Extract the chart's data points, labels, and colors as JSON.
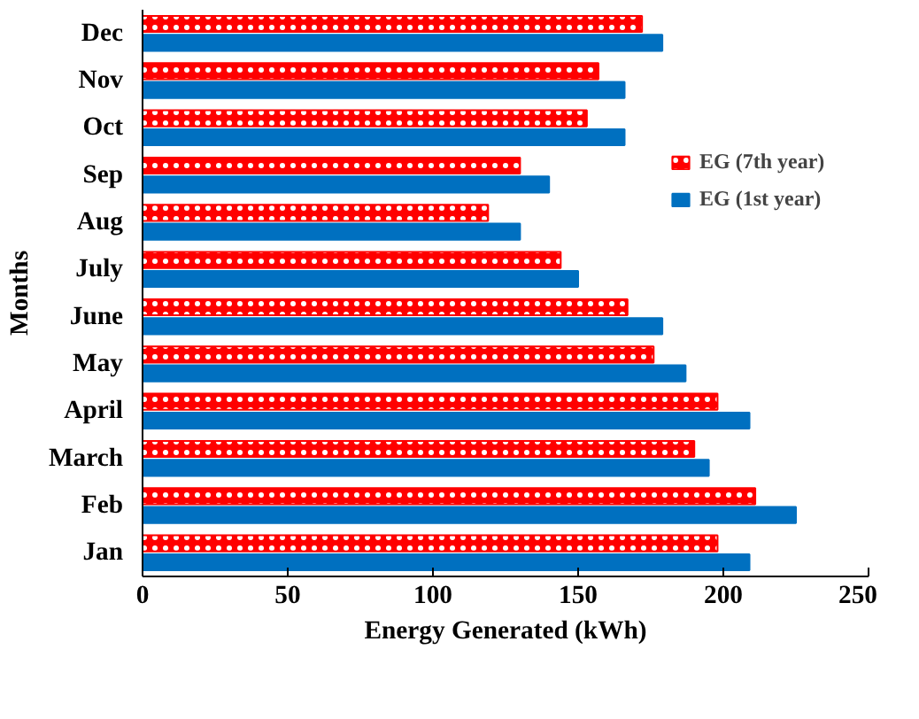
{
  "chart_data": {
    "type": "bar",
    "orientation": "horizontal",
    "xlabel": "Energy Generated (kWh)",
    "ylabel": "Months",
    "categories": [
      "Dec",
      "Nov",
      "Oct",
      "Sep",
      "Aug",
      "July",
      "June",
      "May",
      "April",
      "March",
      "Feb",
      "Jan"
    ],
    "series": [
      {
        "name": "EG (7th year)",
        "color": "#ff0000",
        "values": [
          172,
          157,
          153,
          130,
          119,
          144,
          167,
          176,
          198,
          190,
          211,
          198
        ]
      },
      {
        "name": "EG (1st year)",
        "color": "#0070c0",
        "values": [
          179,
          166,
          166,
          140,
          130,
          150,
          179,
          187,
          209,
          195,
          225,
          209
        ]
      }
    ],
    "xlim": [
      0,
      250
    ],
    "xticks": [
      0,
      50,
      100,
      150,
      200,
      250
    ],
    "grid": false,
    "legend": "right"
  }
}
